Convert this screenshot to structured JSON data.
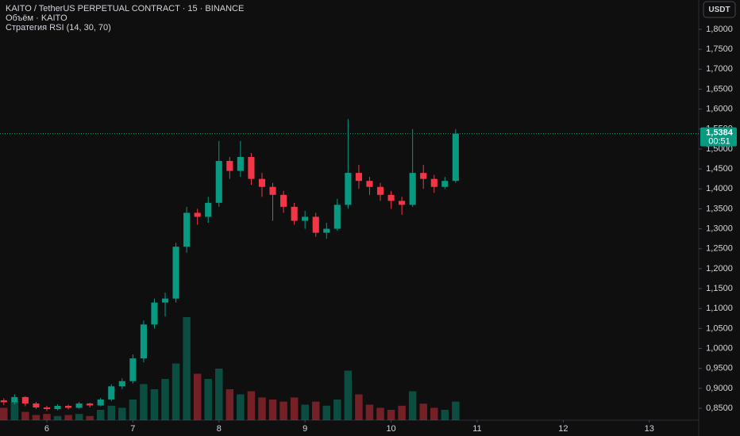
{
  "chart_data": {
    "type": "candlestick",
    "title": "KAITO / TetherUS PERPETUAL CONTRACT · 15 · BINANCE",
    "indicators": [
      "Объём · KAITO",
      "Стратегия RSI (14, 30, 70)"
    ],
    "currency_button": "USDT",
    "up_color": "#089981",
    "down_color": "#f23645",
    "x": [
      5.5,
      5.625,
      5.75,
      5.875,
      6.0,
      6.125,
      6.25,
      6.375,
      6.5,
      6.625,
      6.75,
      6.875,
      7.0,
      7.125,
      7.25,
      7.375,
      7.5,
      7.625,
      7.75,
      7.875,
      8.0,
      8.125,
      8.25,
      8.375,
      8.5,
      8.625,
      8.75,
      8.875,
      9.0,
      9.125,
      9.25,
      9.375,
      9.5,
      9.625,
      9.75,
      9.875,
      10.0,
      10.125,
      10.25,
      10.375,
      10.5,
      10.625,
      10.75
    ],
    "open": [
      0.87,
      0.865,
      0.878,
      0.862,
      0.852,
      0.848,
      0.856,
      0.851,
      0.862,
      0.857,
      0.872,
      0.905,
      0.918,
      0.975,
      1.06,
      1.115,
      1.125,
      1.255,
      1.34,
      1.33,
      1.365,
      1.47,
      1.445,
      1.48,
      1.425,
      1.405,
      1.385,
      1.355,
      1.32,
      1.33,
      1.29,
      1.3,
      1.36,
      1.44,
      1.42,
      1.405,
      1.385,
      1.37,
      1.36,
      1.44,
      1.425,
      1.405,
      1.42
    ],
    "high": [
      0.875,
      0.885,
      0.88,
      0.866,
      0.856,
      0.86,
      0.859,
      0.866,
      0.864,
      0.876,
      0.91,
      0.925,
      0.985,
      1.07,
      1.125,
      1.14,
      1.265,
      1.355,
      1.35,
      1.38,
      1.52,
      1.48,
      1.52,
      1.49,
      1.44,
      1.415,
      1.395,
      1.365,
      1.345,
      1.34,
      1.315,
      1.375,
      1.575,
      1.46,
      1.43,
      1.415,
      1.395,
      1.38,
      1.55,
      1.46,
      1.435,
      1.43,
      1.55
    ],
    "low": [
      0.858,
      0.86,
      0.855,
      0.848,
      0.843,
      0.845,
      0.847,
      0.849,
      0.852,
      0.855,
      0.868,
      0.898,
      0.912,
      0.965,
      1.05,
      1.08,
      1.115,
      1.24,
      1.31,
      1.315,
      1.355,
      1.425,
      1.43,
      1.41,
      1.38,
      1.32,
      1.34,
      1.31,
      1.3,
      1.28,
      1.275,
      1.295,
      1.35,
      1.4,
      1.385,
      1.37,
      1.35,
      1.335,
      1.355,
      1.4,
      1.39,
      1.4,
      1.415
    ],
    "close": [
      0.865,
      0.878,
      0.862,
      0.852,
      0.848,
      0.856,
      0.851,
      0.862,
      0.857,
      0.872,
      0.905,
      0.918,
      0.975,
      1.06,
      1.115,
      1.125,
      1.255,
      1.34,
      1.33,
      1.365,
      1.47,
      1.445,
      1.48,
      1.425,
      1.405,
      1.385,
      1.355,
      1.32,
      1.33,
      1.29,
      1.3,
      1.36,
      1.44,
      1.42,
      1.405,
      1.385,
      1.37,
      1.36,
      1.44,
      1.425,
      1.405,
      1.42,
      1.5384
    ],
    "volume": [
      12,
      18,
      8,
      5,
      6,
      4,
      5,
      6,
      4,
      10,
      14,
      12,
      20,
      35,
      30,
      40,
      55,
      100,
      45,
      40,
      50,
      30,
      25,
      28,
      22,
      20,
      18,
      22,
      15,
      18,
      14,
      20,
      48,
      25,
      15,
      12,
      10,
      14,
      28,
      16,
      12,
      10,
      18
    ],
    "vlim": [
      0,
      100
    ],
    "last_price": {
      "value": 1.5384,
      "label": "1,5384"
    },
    "countdown": "00:51",
    "xlim": [
      5.456,
      13.574
    ],
    "xticks": [
      6,
      7,
      8,
      9,
      10,
      11,
      12,
      13
    ],
    "ylim": [
      0.8202,
      1.8735
    ],
    "yticks": [
      {
        "value": 0.85,
        "label": "0,8500"
      },
      {
        "value": 0.9,
        "label": "0,9000"
      },
      {
        "value": 0.95,
        "label": "0,9500"
      },
      {
        "value": 1.0,
        "label": "1,0000"
      },
      {
        "value": 1.05,
        "label": "1,0500"
      },
      {
        "value": 1.1,
        "label": "1,1000"
      },
      {
        "value": 1.15,
        "label": "1,1500"
      },
      {
        "value": 1.2,
        "label": "1,2000"
      },
      {
        "value": 1.25,
        "label": "1,2500"
      },
      {
        "value": 1.3,
        "label": "1,3000"
      },
      {
        "value": 1.35,
        "label": "1,3500"
      },
      {
        "value": 1.4,
        "label": "1,4000"
      },
      {
        "value": 1.45,
        "label": "1,4500"
      },
      {
        "value": 1.5,
        "label": "1,5000"
      },
      {
        "value": 1.55,
        "label": "1,5500"
      },
      {
        "value": 1.6,
        "label": "1,6000"
      },
      {
        "value": 1.65,
        "label": "1,6500"
      },
      {
        "value": 1.7,
        "label": "1,7000"
      },
      {
        "value": 1.75,
        "label": "1,7500"
      },
      {
        "value": 1.8,
        "label": "1,8000"
      }
    ]
  }
}
